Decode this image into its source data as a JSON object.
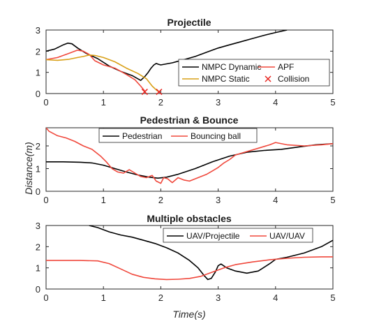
{
  "colors": {
    "black": "#000000",
    "red": "#f0483c",
    "orange": "#d9a017",
    "collision": "#e8231e"
  },
  "chart_data": {
    "type": "line",
    "ylabel": "Distance(m)",
    "xlabel": "Time(s)",
    "panels": [
      {
        "title": "Projectile",
        "xlim": [
          0,
          5
        ],
        "ylim": [
          0,
          3
        ],
        "xticks": [
          0,
          1,
          2,
          3,
          4,
          5
        ],
        "yticks": [
          0,
          1,
          2,
          3
        ],
        "legend": {
          "columns": 2,
          "entries": [
            "NMPC Dynamic",
            "APF",
            "NMPC Static",
            "Collision"
          ]
        },
        "series": [
          {
            "name": "NMPC Dynamic",
            "color": "#000000",
            "x": [
              0,
              0.15,
              0.3,
              0.38,
              0.45,
              0.55,
              0.7,
              0.9,
              1.1,
              1.3,
              1.5,
              1.65,
              1.72,
              1.78,
              1.83,
              1.88,
              1.92,
              1.96,
              2.0,
              2.1,
              2.2,
              2.4,
              2.6,
              2.8,
              3.0,
              3.2,
              3.4,
              3.6,
              3.8,
              4.0,
              4.2
            ],
            "y": [
              2.0,
              2.1,
              2.3,
              2.38,
              2.35,
              2.15,
              1.9,
              1.65,
              1.3,
              1.05,
              0.85,
              0.62,
              0.8,
              1.0,
              1.2,
              1.35,
              1.42,
              1.38,
              1.35,
              1.4,
              1.45,
              1.6,
              1.75,
              1.95,
              2.15,
              2.3,
              2.45,
              2.6,
              2.75,
              2.88,
              3.0
            ]
          },
          {
            "name": "APF",
            "color": "#f0483c",
            "x": [
              0,
              0.2,
              0.4,
              0.55,
              0.65,
              0.75,
              0.85,
              1.0,
              1.2,
              1.4,
              1.55,
              1.65,
              1.72
            ],
            "y": [
              1.6,
              1.7,
              1.9,
              2.05,
              2.0,
              1.85,
              1.55,
              1.35,
              1.2,
              0.9,
              0.65,
              0.35,
              0.12
            ]
          },
          {
            "name": "NMPC Static",
            "color": "#d9a017",
            "x": [
              0,
              0.2,
              0.4,
              0.55,
              0.65,
              0.75,
              0.85,
              1.0,
              1.2,
              1.4,
              1.6,
              1.75,
              1.85,
              1.93,
              1.97
            ],
            "y": [
              1.6,
              1.57,
              1.62,
              1.7,
              1.75,
              1.82,
              1.8,
              1.7,
              1.5,
              1.2,
              0.95,
              0.7,
              0.35,
              0.15,
              0.08
            ]
          }
        ],
        "collisions": [
          {
            "x": 1.72,
            "y": 0.08
          },
          {
            "x": 1.97,
            "y": 0.08
          }
        ]
      },
      {
        "title": "Pedestrian & Bounce",
        "xlim": [
          0,
          5
        ],
        "ylim": [
          0,
          2.8
        ],
        "xticks": [
          0,
          1,
          2,
          3,
          4,
          5
        ],
        "yticks": [
          0,
          1,
          2
        ],
        "legend": {
          "columns": 2,
          "entries": [
            "Pedestrian",
            "Bouncing ball"
          ]
        },
        "series": [
          {
            "name": "Pedestrian",
            "color": "#000000",
            "x": [
              0,
              0.3,
              0.6,
              0.8,
              1.0,
              1.2,
              1.4,
              1.6,
              1.8,
              1.95,
              2.1,
              2.3,
              2.6,
              2.9,
              3.2,
              3.5,
              3.8,
              4.1,
              4.4,
              4.7,
              5.0
            ],
            "y": [
              1.3,
              1.3,
              1.28,
              1.25,
              1.15,
              1.0,
              0.85,
              0.72,
              0.62,
              0.58,
              0.62,
              0.75,
              1.0,
              1.3,
              1.55,
              1.72,
              1.8,
              1.85,
              1.95,
              2.05,
              2.1
            ]
          },
          {
            "name": "Bouncing ball",
            "color": "#f0483c",
            "x": [
              0,
              0.05,
              0.2,
              0.35,
              0.5,
              0.65,
              0.8,
              0.95,
              1.05,
              1.15,
              1.25,
              1.35,
              1.45,
              1.55,
              1.65,
              1.75,
              1.85,
              1.92,
              2.0,
              2.05,
              2.12,
              2.2,
              2.3,
              2.4,
              2.5,
              2.6,
              2.7,
              2.8,
              2.9,
              3.0,
              3.1,
              3.2,
              3.3,
              3.5,
              3.7,
              3.9,
              4.0,
              4.2,
              4.5,
              4.8,
              5.0
            ],
            "y": [
              2.8,
              2.65,
              2.45,
              2.35,
              2.2,
              2.0,
              1.85,
              1.55,
              1.3,
              1.0,
              0.85,
              0.8,
              0.95,
              0.8,
              0.65,
              0.6,
              0.7,
              0.45,
              0.35,
              0.6,
              0.55,
              0.38,
              0.6,
              0.5,
              0.45,
              0.55,
              0.65,
              0.75,
              0.9,
              1.05,
              1.25,
              1.4,
              1.6,
              1.75,
              1.9,
              2.05,
              2.15,
              2.05,
              2.0,
              2.05,
              2.1
            ]
          }
        ]
      },
      {
        "title": "Multiple obstacles",
        "xlim": [
          0,
          5
        ],
        "ylim": [
          0,
          3
        ],
        "xticks": [
          0,
          1,
          2,
          3,
          4,
          5
        ],
        "yticks": [
          0,
          1,
          2,
          3
        ],
        "legend": {
          "columns": 2,
          "entries": [
            "UAV/Projectile",
            "UAV/UAV"
          ]
        },
        "series": [
          {
            "name": "UAV/Projectile",
            "color": "#000000",
            "x": [
              0.75,
              0.9,
              1.1,
              1.3,
              1.5,
              1.7,
              1.9,
              2.1,
              2.3,
              2.5,
              2.65,
              2.75,
              2.82,
              2.88,
              2.95,
              3.0,
              3.05,
              3.15,
              3.3,
              3.5,
              3.7,
              3.9,
              4.0,
              4.2,
              4.5,
              4.8,
              5.0
            ],
            "y": [
              3.0,
              2.9,
              2.7,
              2.55,
              2.45,
              2.3,
              2.15,
              1.95,
              1.7,
              1.35,
              1.0,
              0.65,
              0.45,
              0.5,
              0.8,
              1.1,
              1.18,
              1.0,
              0.85,
              0.75,
              0.85,
              1.2,
              1.4,
              1.5,
              1.7,
              2.0,
              2.3
            ]
          },
          {
            "name": "UAV/UAV",
            "color": "#f0483c",
            "x": [
              0,
              0.3,
              0.6,
              0.9,
              1.1,
              1.3,
              1.5,
              1.7,
              1.9,
              2.1,
              2.3,
              2.5,
              2.7,
              2.9,
              3.1,
              3.3,
              3.6,
              3.9,
              4.2,
              4.5,
              4.8,
              5.0
            ],
            "y": [
              1.35,
              1.35,
              1.35,
              1.33,
              1.2,
              0.95,
              0.7,
              0.55,
              0.48,
              0.45,
              0.46,
              0.5,
              0.6,
              0.8,
              1.0,
              1.15,
              1.28,
              1.38,
              1.45,
              1.5,
              1.52,
              1.52
            ]
          }
        ]
      }
    ]
  }
}
